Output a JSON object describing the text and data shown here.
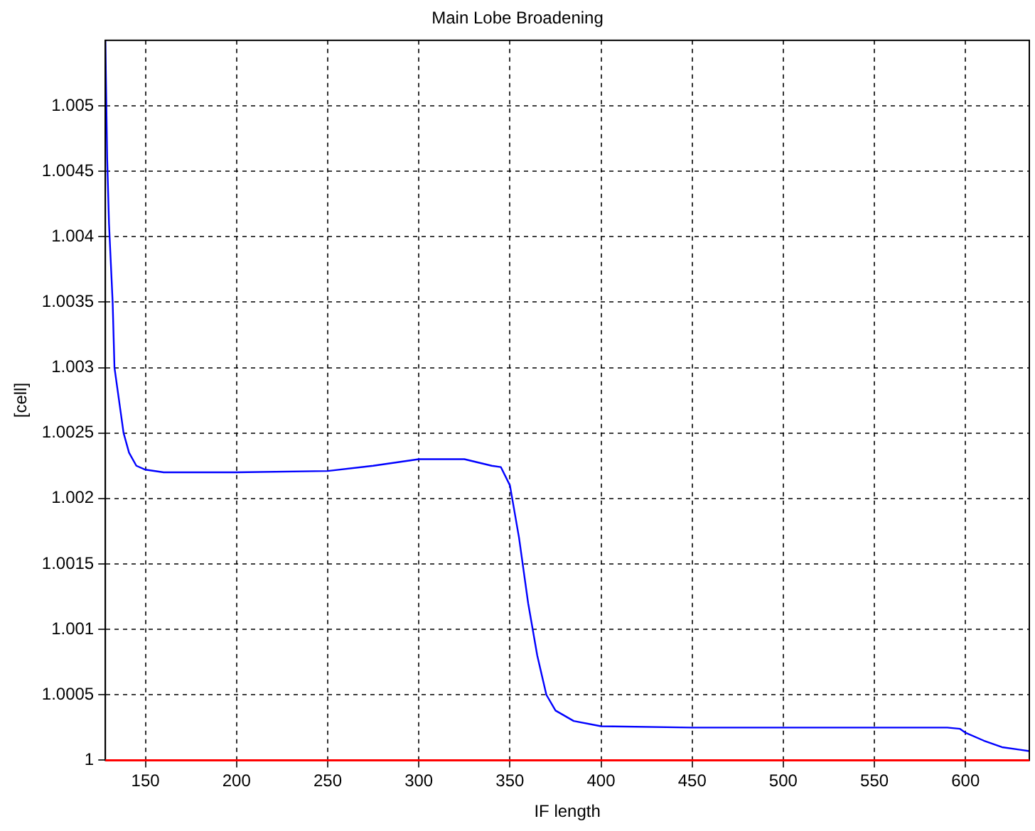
{
  "chart_data": {
    "type": "line",
    "title": "Main Lobe Broadening",
    "xlabel": "IF length",
    "ylabel": "[cell]",
    "series": [
      {
        "color": "#0000ff",
        "x": [
          128,
          129,
          130,
          131,
          132,
          133,
          135,
          138,
          141,
          145,
          150,
          160,
          200,
          250,
          275,
          300,
          325,
          340,
          345,
          350,
          355,
          360,
          365,
          370,
          375,
          385,
          400,
          450,
          500,
          550,
          590,
          597,
          600,
          610,
          620,
          630,
          635
        ],
        "values": [
          1.0055,
          1.0046,
          1.0041,
          1.0038,
          1.0035,
          1.003,
          1.0028,
          1.0025,
          1.00235,
          1.00225,
          1.00222,
          1.0022,
          1.0022,
          1.00221,
          1.00225,
          1.0023,
          1.0023,
          1.00225,
          1.00224,
          1.0021,
          1.0017,
          1.0012,
          1.0008,
          1.0005,
          1.00038,
          1.0003,
          1.00026,
          1.00025,
          1.00025,
          1.00025,
          1.00025,
          1.00024,
          1.00021,
          1.00015,
          1.0001,
          1.00008,
          1.00007
        ]
      }
    ],
    "ref_lines": [
      {
        "axis": "y",
        "value": 1,
        "color": "#ff0000"
      }
    ],
    "xlim": [
      128,
      635
    ],
    "xticks": [
      150,
      200,
      250,
      300,
      350,
      400,
      450,
      500,
      550,
      600
    ],
    "ylim": [
      1,
      1.0055
    ],
    "yticks": [
      1,
      1.0005,
      1.001,
      1.0015,
      1.002,
      1.0025,
      1.003,
      1.0035,
      1.004,
      1.0045,
      1.005
    ],
    "grid": true,
    "legend": false,
    "marker": "none",
    "line_style": "solid"
  }
}
